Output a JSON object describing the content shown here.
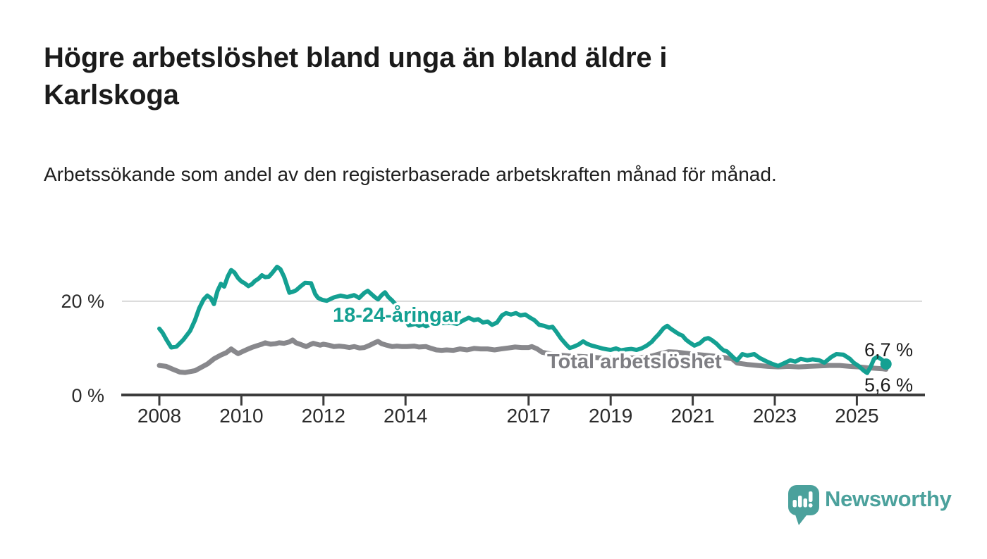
{
  "header": {
    "title": "Högre arbetslöshet bland unga än bland äldre i Karlskoga",
    "subtitle": "Arbetssökande som andel av den registerbaserade arbetskraften månad för månad."
  },
  "chart_data": {
    "type": "line",
    "unit": "%",
    "x_ticks": [
      2008,
      2010,
      2012,
      2014,
      2017,
      2019,
      2021,
      2023,
      2025
    ],
    "y_ticks": [
      {
        "value": 0,
        "label": "0 %"
      },
      {
        "value": 20,
        "label": "20 %"
      }
    ],
    "ylim": [
      0,
      29
    ],
    "xlim_years": [
      2008.0,
      2025.71
    ],
    "grid": "horizontal gridline at 20% only",
    "legend_position": "inline labels on lines",
    "colors": {
      "youth": "#14a092",
      "total": "#88888c",
      "axis": "#3c3c3c",
      "gridline": "#d8d8d8"
    },
    "series": [
      {
        "name": "Total arbetslöshet",
        "label_text": "Total arbetslöshet",
        "color": "#88888c",
        "label_color": "#7e7e83",
        "end_label": "5,6 %",
        "end_value": 5.6,
        "end_dot": false,
        "points": [
          [
            2008.0,
            6.4
          ],
          [
            2008.17,
            6.2
          ],
          [
            2008.33,
            5.6
          ],
          [
            2008.5,
            5.0
          ],
          [
            2008.63,
            4.9
          ],
          [
            2008.75,
            5.1
          ],
          [
            2008.87,
            5.3
          ],
          [
            2009.0,
            5.9
          ],
          [
            2009.17,
            6.7
          ],
          [
            2009.33,
            7.8
          ],
          [
            2009.5,
            8.6
          ],
          [
            2009.63,
            9.1
          ],
          [
            2009.75,
            9.9
          ],
          [
            2009.83,
            9.4
          ],
          [
            2009.92,
            8.9
          ],
          [
            2010.04,
            9.4
          ],
          [
            2010.17,
            9.9
          ],
          [
            2010.25,
            10.2
          ],
          [
            2010.42,
            10.7
          ],
          [
            2010.5,
            10.9
          ],
          [
            2010.58,
            11.2
          ],
          [
            2010.71,
            10.9
          ],
          [
            2010.83,
            11.0
          ],
          [
            2010.92,
            11.2
          ],
          [
            2011.04,
            11.1
          ],
          [
            2011.17,
            11.4
          ],
          [
            2011.25,
            11.8
          ],
          [
            2011.33,
            11.2
          ],
          [
            2011.46,
            10.8
          ],
          [
            2011.58,
            10.4
          ],
          [
            2011.67,
            10.8
          ],
          [
            2011.75,
            11.1
          ],
          [
            2011.83,
            10.9
          ],
          [
            2011.92,
            10.7
          ],
          [
            2012.0,
            10.9
          ],
          [
            2012.13,
            10.7
          ],
          [
            2012.25,
            10.4
          ],
          [
            2012.38,
            10.5
          ],
          [
            2012.5,
            10.4
          ],
          [
            2012.63,
            10.2
          ],
          [
            2012.75,
            10.4
          ],
          [
            2012.88,
            10.1
          ],
          [
            2013.0,
            10.2
          ],
          [
            2013.13,
            10.7
          ],
          [
            2013.25,
            11.2
          ],
          [
            2013.33,
            11.5
          ],
          [
            2013.42,
            11.0
          ],
          [
            2013.54,
            10.7
          ],
          [
            2013.67,
            10.4
          ],
          [
            2013.79,
            10.5
          ],
          [
            2013.92,
            10.4
          ],
          [
            2014.04,
            10.4
          ],
          [
            2014.21,
            10.5
          ],
          [
            2014.33,
            10.3
          ],
          [
            2014.5,
            10.4
          ],
          [
            2014.63,
            10.0
          ],
          [
            2014.75,
            9.7
          ],
          [
            2014.88,
            9.6
          ],
          [
            2015.0,
            9.7
          ],
          [
            2015.17,
            9.6
          ],
          [
            2015.33,
            9.9
          ],
          [
            2015.5,
            9.7
          ],
          [
            2015.67,
            10.0
          ],
          [
            2015.83,
            9.9
          ],
          [
            2016.0,
            9.9
          ],
          [
            2016.17,
            9.7
          ],
          [
            2016.33,
            9.9
          ],
          [
            2016.5,
            10.1
          ],
          [
            2016.67,
            10.3
          ],
          [
            2016.83,
            10.2
          ],
          [
            2017.0,
            10.2
          ],
          [
            2017.08,
            10.4
          ],
          [
            2017.21,
            9.9
          ],
          [
            2017.33,
            9.2
          ],
          [
            2017.5,
            8.9
          ],
          [
            2017.75,
            8.6
          ],
          [
            2018.0,
            8.4
          ],
          [
            2018.25,
            8.3
          ],
          [
            2018.5,
            8.2
          ],
          [
            2018.75,
            8.0
          ],
          [
            2019.0,
            7.9
          ],
          [
            2019.25,
            7.9
          ],
          [
            2019.5,
            8.0
          ],
          [
            2019.75,
            8.1
          ],
          [
            2020.0,
            8.4
          ],
          [
            2020.25,
            9.0
          ],
          [
            2020.42,
            9.3
          ],
          [
            2020.63,
            9.2
          ],
          [
            2020.83,
            9.0
          ],
          [
            2021.0,
            8.8
          ],
          [
            2021.25,
            8.6
          ],
          [
            2021.5,
            8.4
          ],
          [
            2021.75,
            8.1
          ],
          [
            2021.96,
            7.8
          ],
          [
            2022.08,
            6.9
          ],
          [
            2022.33,
            6.6
          ],
          [
            2022.58,
            6.4
          ],
          [
            2022.83,
            6.2
          ],
          [
            2023.08,
            6.1
          ],
          [
            2023.33,
            6.2
          ],
          [
            2023.58,
            6.1
          ],
          [
            2023.83,
            6.2
          ],
          [
            2024.08,
            6.3
          ],
          [
            2024.33,
            6.4
          ],
          [
            2024.58,
            6.4
          ],
          [
            2024.83,
            6.2
          ],
          [
            2025.04,
            6.1
          ],
          [
            2025.25,
            5.9
          ],
          [
            2025.46,
            5.8
          ],
          [
            2025.63,
            5.7
          ],
          [
            2025.71,
            5.6
          ]
        ]
      },
      {
        "name": "18-24-åringar",
        "label_text": "18-24-åringar",
        "color": "#14a092",
        "label_color": "#14a092",
        "end_label": "6,7 %",
        "end_value": 6.7,
        "end_dot": true,
        "points": [
          [
            2008.0,
            14.2
          ],
          [
            2008.08,
            13.3
          ],
          [
            2008.17,
            11.9
          ],
          [
            2008.29,
            10.2
          ],
          [
            2008.42,
            10.4
          ],
          [
            2008.58,
            11.8
          ],
          [
            2008.75,
            13.7
          ],
          [
            2008.87,
            16.0
          ],
          [
            2008.97,
            18.5
          ],
          [
            2009.08,
            20.4
          ],
          [
            2009.17,
            21.2
          ],
          [
            2009.25,
            20.7
          ],
          [
            2009.33,
            19.4
          ],
          [
            2009.42,
            22.2
          ],
          [
            2009.5,
            23.7
          ],
          [
            2009.58,
            23.1
          ],
          [
            2009.67,
            25.3
          ],
          [
            2009.75,
            26.6
          ],
          [
            2009.83,
            26.1
          ],
          [
            2009.92,
            24.9
          ],
          [
            2010.0,
            24.2
          ],
          [
            2010.08,
            23.8
          ],
          [
            2010.17,
            23.2
          ],
          [
            2010.25,
            23.6
          ],
          [
            2010.33,
            24.3
          ],
          [
            2010.42,
            24.8
          ],
          [
            2010.5,
            25.5
          ],
          [
            2010.58,
            25.1
          ],
          [
            2010.67,
            25.2
          ],
          [
            2010.75,
            26.0
          ],
          [
            2010.87,
            27.3
          ],
          [
            2010.95,
            26.8
          ],
          [
            2011.04,
            25.2
          ],
          [
            2011.17,
            21.8
          ],
          [
            2011.25,
            22.0
          ],
          [
            2011.33,
            22.3
          ],
          [
            2011.45,
            23.2
          ],
          [
            2011.55,
            23.9
          ],
          [
            2011.7,
            23.8
          ],
          [
            2011.8,
            21.5
          ],
          [
            2011.87,
            20.7
          ],
          [
            2011.97,
            20.3
          ],
          [
            2012.08,
            20.1
          ],
          [
            2012.25,
            20.8
          ],
          [
            2012.42,
            21.2
          ],
          [
            2012.58,
            20.9
          ],
          [
            2012.75,
            21.3
          ],
          [
            2012.87,
            20.7
          ],
          [
            2013.0,
            21.8
          ],
          [
            2013.08,
            22.2
          ],
          [
            2013.17,
            21.5
          ],
          [
            2013.25,
            20.9
          ],
          [
            2013.33,
            20.4
          ],
          [
            2013.42,
            21.3
          ],
          [
            2013.5,
            21.9
          ],
          [
            2013.58,
            20.9
          ],
          [
            2013.67,
            20.2
          ],
          [
            2013.75,
            19.4
          ],
          [
            2013.83,
            18.3
          ],
          [
            2013.92,
            17.1
          ],
          [
            2014.0,
            16.0
          ],
          [
            2014.08,
            14.9
          ],
          [
            2014.25,
            15.2
          ],
          [
            2014.33,
            14.8
          ],
          [
            2014.42,
            15.1
          ],
          [
            2014.5,
            14.7
          ],
          [
            2014.58,
            15.0
          ],
          [
            2014.75,
            15.3
          ],
          [
            2014.92,
            15.4
          ],
          [
            2015.08,
            15.5
          ],
          [
            2015.25,
            15.2
          ],
          [
            2015.42,
            16.0
          ],
          [
            2015.54,
            16.5
          ],
          [
            2015.67,
            16.0
          ],
          [
            2015.77,
            16.2
          ],
          [
            2015.89,
            15.5
          ],
          [
            2016.0,
            15.7
          ],
          [
            2016.11,
            15.0
          ],
          [
            2016.23,
            15.5
          ],
          [
            2016.35,
            17.0
          ],
          [
            2016.45,
            17.5
          ],
          [
            2016.57,
            17.2
          ],
          [
            2016.69,
            17.5
          ],
          [
            2016.8,
            17.0
          ],
          [
            2016.92,
            17.2
          ],
          [
            2017.04,
            16.5
          ],
          [
            2017.14,
            16.0
          ],
          [
            2017.26,
            15.0
          ],
          [
            2017.38,
            14.8
          ],
          [
            2017.5,
            14.4
          ],
          [
            2017.58,
            14.6
          ],
          [
            2017.67,
            13.6
          ],
          [
            2017.79,
            12.1
          ],
          [
            2017.92,
            10.8
          ],
          [
            2018.0,
            10.1
          ],
          [
            2018.08,
            10.3
          ],
          [
            2018.21,
            10.8
          ],
          [
            2018.33,
            11.5
          ],
          [
            2018.42,
            11.0
          ],
          [
            2018.54,
            10.6
          ],
          [
            2018.67,
            10.3
          ],
          [
            2018.79,
            10.0
          ],
          [
            2018.92,
            9.8
          ],
          [
            2019.0,
            9.7
          ],
          [
            2019.13,
            10.0
          ],
          [
            2019.25,
            9.6
          ],
          [
            2019.38,
            9.8
          ],
          [
            2019.5,
            9.9
          ],
          [
            2019.63,
            9.7
          ],
          [
            2019.75,
            10.0
          ],
          [
            2019.88,
            10.6
          ],
          [
            2020.0,
            11.4
          ],
          [
            2020.08,
            12.2
          ],
          [
            2020.17,
            13.0
          ],
          [
            2020.29,
            14.3
          ],
          [
            2020.38,
            14.8
          ],
          [
            2020.46,
            14.2
          ],
          [
            2020.58,
            13.5
          ],
          [
            2020.67,
            13.0
          ],
          [
            2020.75,
            12.7
          ],
          [
            2020.83,
            11.9
          ],
          [
            2020.92,
            11.3
          ],
          [
            2021.04,
            10.6
          ],
          [
            2021.17,
            11.1
          ],
          [
            2021.29,
            12.0
          ],
          [
            2021.38,
            12.2
          ],
          [
            2021.46,
            11.8
          ],
          [
            2021.58,
            11.0
          ],
          [
            2021.67,
            10.2
          ],
          [
            2021.75,
            9.6
          ],
          [
            2021.83,
            9.4
          ],
          [
            2021.92,
            8.7
          ],
          [
            2022.0,
            8.0
          ],
          [
            2022.08,
            7.5
          ],
          [
            2022.21,
            8.8
          ],
          [
            2022.33,
            8.5
          ],
          [
            2022.5,
            8.8
          ],
          [
            2022.63,
            8.0
          ],
          [
            2022.79,
            7.3
          ],
          [
            2022.92,
            6.8
          ],
          [
            2023.08,
            6.3
          ],
          [
            2023.21,
            6.8
          ],
          [
            2023.38,
            7.5
          ],
          [
            2023.5,
            7.2
          ],
          [
            2023.63,
            7.8
          ],
          [
            2023.79,
            7.5
          ],
          [
            2023.92,
            7.7
          ],
          [
            2024.08,
            7.5
          ],
          [
            2024.21,
            7.0
          ],
          [
            2024.38,
            8.2
          ],
          [
            2024.5,
            8.8
          ],
          [
            2024.67,
            8.7
          ],
          [
            2024.83,
            7.8
          ],
          [
            2024.92,
            7.0
          ],
          [
            2025.04,
            6.3
          ],
          [
            2025.17,
            5.3
          ],
          [
            2025.25,
            4.8
          ],
          [
            2025.33,
            6.0
          ],
          [
            2025.42,
            7.8
          ],
          [
            2025.5,
            8.2
          ],
          [
            2025.58,
            7.8
          ],
          [
            2025.67,
            7.2
          ],
          [
            2025.71,
            6.7
          ]
        ]
      }
    ]
  },
  "footer": {
    "brand": "Newsworthy",
    "logo_color": "#4ba19c"
  }
}
